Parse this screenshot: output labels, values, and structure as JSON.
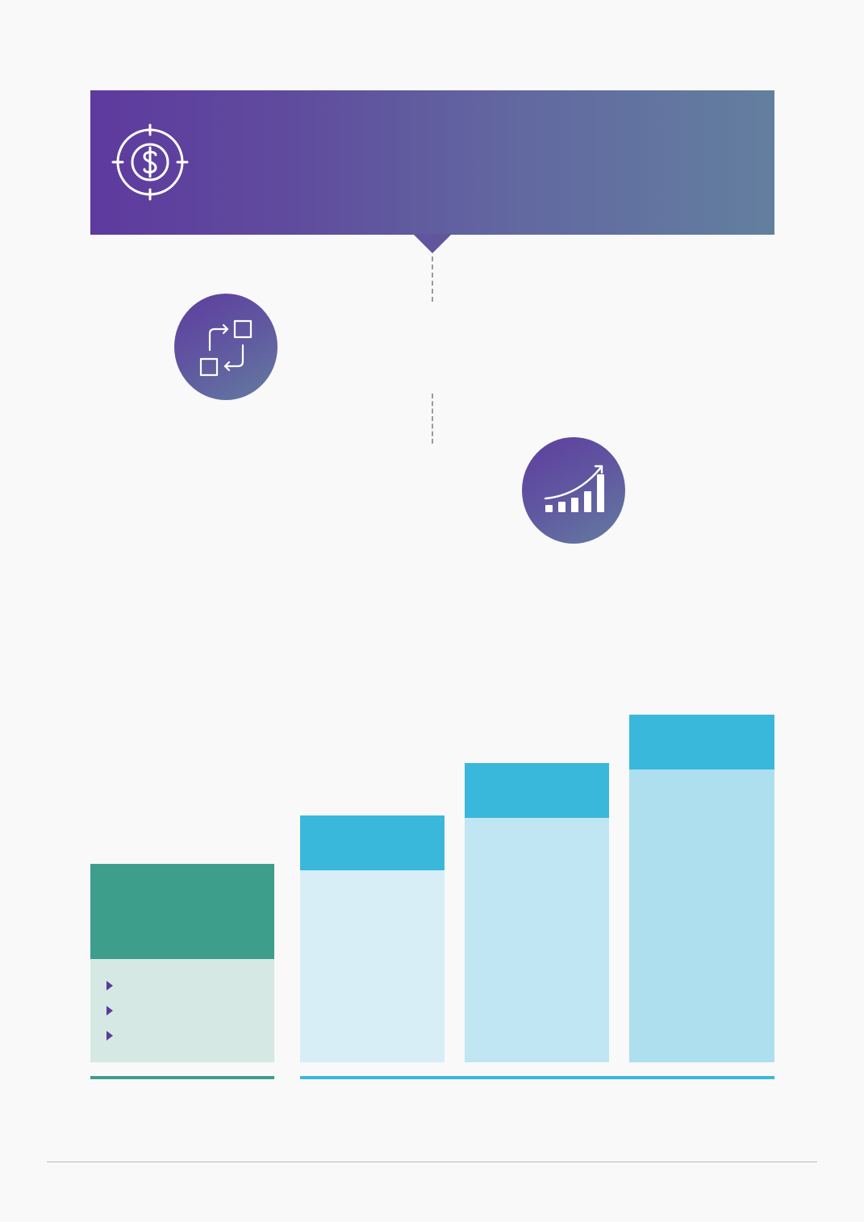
{
  "colors": {
    "banner_gradient_start": "#5e3a9e",
    "banner_gradient_end": "#637f9f",
    "circle_gradient": "#5f4da0",
    "green_header": "#3e9e8c",
    "green_body": "#d6e8e4",
    "teal_header": "#3ab8dc",
    "bar1_body": "#d7eef6",
    "bar2_body": "#c1e6f3",
    "bar3_body": "#aedfee",
    "bullet": "#5b3a9c",
    "rule": "#b9b9b9"
  },
  "icons": {
    "banner": "target-dollar-icon",
    "process": "process-cycle-icon",
    "growth": "growth-chart-icon"
  },
  "left_panel": {
    "bullet_count": 3
  }
}
